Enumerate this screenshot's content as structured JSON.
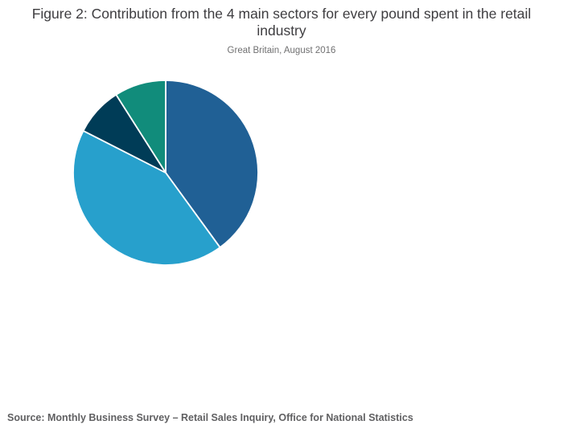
{
  "header": {
    "title": "Figure 2: Contribution from the 4 main sectors for every pound spent in the retail industry",
    "subtitle": "Great Britain, August 2016"
  },
  "footer": {
    "source": "Source: Monthly Business Survey – Retail Sales Inquiry, Office for National Statistics"
  },
  "colors": {
    "title_text": "#3e3d40",
    "subtitle_text": "#707071",
    "source_text": "#606062",
    "background": "#ffffff",
    "slice_separator": "#ffffff"
  },
  "chart_data": {
    "type": "pie",
    "title": "Figure 2: Contribution from the 4 main sectors for every pound spent in the retail industry",
    "subtitle": "Great Britain, August 2016",
    "start_angle_deg": 0,
    "direction": "clockwise",
    "data_labels": "none",
    "legend_position": "none",
    "values_unit": "percent (estimated from slice angles, no labels visible)",
    "slices": [
      {
        "name": "sector-1-ocean-blue",
        "value": 40,
        "color": "#206095"
      },
      {
        "name": "sector-2-sky-blue",
        "value": 42.5,
        "color": "#27A0CC"
      },
      {
        "name": "sector-3-night-blue",
        "value": 8.5,
        "color": "#003C57"
      },
      {
        "name": "sector-4-green",
        "value": 9,
        "color": "#118C7B"
      }
    ],
    "separator_color": "#ffffff",
    "radius_px": 115
  }
}
